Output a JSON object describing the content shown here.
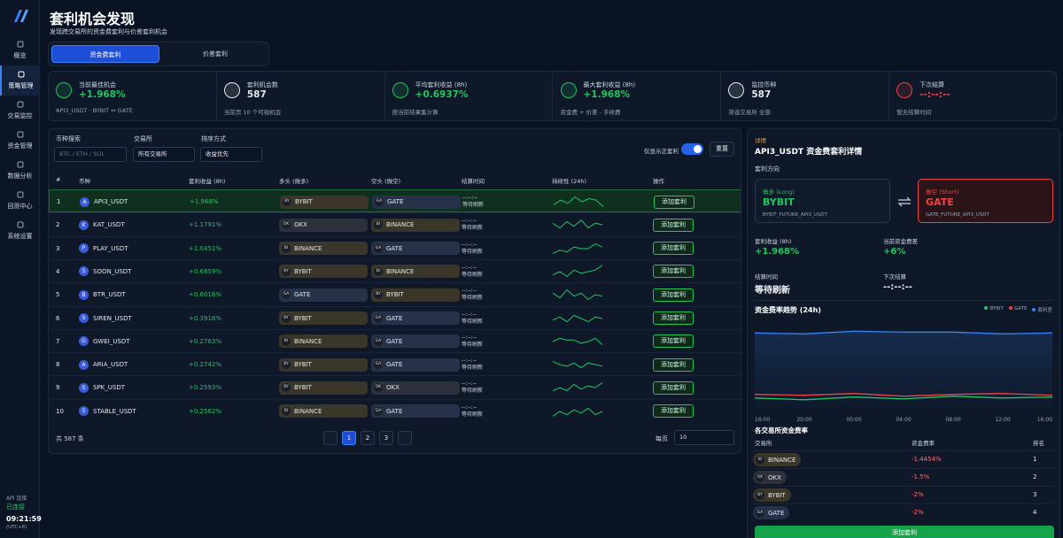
{
  "active_nav": 1,
  "sidebar": {
    "nav": [
      "概览",
      "策略管理",
      "交易监控",
      "资金管理",
      "数据分析",
      "回测中心",
      "系统设置"
    ]
  },
  "status": {
    "label": "API 连接",
    "state": "已连接",
    "time": "09:21:59",
    "tz": "(UTC+8)"
  },
  "header": {
    "title": "套利机会发现",
    "subtitle": "发现跨交易所的资金费套利与价差套利机会"
  },
  "tabs": {
    "items": [
      "资金费套利",
      "价差套利"
    ],
    "active": 0
  },
  "stats": [
    {
      "label": "当前最佳机会",
      "value": "+1.968%",
      "note": "API3_USDT · BYBIT ↔ GATE",
      "color": "#22c55e"
    },
    {
      "label": "套利机会数",
      "value": "587",
      "note": "当前页 10 个可视机会",
      "color": "#e5e7eb"
    },
    {
      "label": "平均套利收益 (8h)",
      "value": "+0.6937%",
      "note": "按当前结果集计算",
      "color": "#22c55e"
    },
    {
      "label": "最大套利收益 (8h)",
      "value": "+1.968%",
      "note": "资金费 + 价差 - 手续费",
      "color": "#22c55e"
    },
    {
      "label": "监控币种",
      "value": "587",
      "note": "筛选交易所 全部",
      "color": "#e5e7eb"
    },
    {
      "label": "下次结算",
      "value": "--:--:--",
      "note": "暂无结算时间",
      "color": "#ef4444"
    }
  ],
  "filters": {
    "search_label": "币种搜索",
    "search_placeholder": "BTC / ETH / SOL",
    "exchange_label": "交易所",
    "exchange_value": "所有交易所",
    "sort_label": "排序方式",
    "sort_value": "收益优先",
    "toggle_label": "仅显示正套利",
    "reset": "重置"
  },
  "exchange_styles": {
    "BYBIT": "#3a3629",
    "GATE": "#26324a",
    "OKX": "#2c313c",
    "BINANCE": "#3a3629"
  },
  "table": {
    "columns": [
      "#",
      "币种",
      "套利收益 (8h)",
      "多头 (做多)",
      "空头 (做空)",
      "结算时间",
      "持续性 (24h)",
      "操作"
    ],
    "trend_range": [
      0,
      10
    ],
    "highlight": 0,
    "rows": [
      {
        "rank": 1,
        "icon": "A",
        "symbol": "API3_USDT",
        "profit": "+1.968%",
        "long": {
          "abbr": "BY",
          "name": "BYBIT"
        },
        "short": {
          "abbr": "GA",
          "name": "GATE"
        },
        "settle": "--:--:--",
        "settle_note": "等待刷新",
        "trend": [
          3,
          6,
          4,
          8,
          5,
          7,
          6,
          2
        ],
        "action": "添加套利"
      },
      {
        "rank": 2,
        "icon": "K",
        "symbol": "KAT_USDT",
        "profit": "+1.1791%",
        "long": {
          "abbr": "OK",
          "name": "OKX"
        },
        "short": {
          "abbr": "BI",
          "name": "BINANCE"
        },
        "settle": "--:--:--",
        "settle_note": "等待刷新",
        "trend": [
          6,
          3,
          7,
          4,
          8,
          3,
          6,
          5
        ],
        "action": "添加套利"
      },
      {
        "rank": 3,
        "icon": "P",
        "symbol": "PLAY_USDT",
        "profit": "+1.0451%",
        "long": {
          "abbr": "BI",
          "name": "BINANCE"
        },
        "short": {
          "abbr": "GA",
          "name": "GATE"
        },
        "settle": "--:--:--",
        "settle_note": "等待刷新",
        "trend": [
          2,
          4,
          3,
          6,
          5,
          5,
          8,
          6
        ],
        "action": "添加套利"
      },
      {
        "rank": 4,
        "icon": "S",
        "symbol": "SOON_USDT",
        "profit": "+0.6859%",
        "long": {
          "abbr": "BY",
          "name": "BYBIT"
        },
        "short": {
          "abbr": "BI",
          "name": "BINANCE"
        },
        "settle": "--:--:--",
        "settle_note": "等待刷新",
        "trend": [
          3,
          5,
          2,
          6,
          4,
          5,
          6,
          9
        ],
        "action": "添加套利"
      },
      {
        "rank": 5,
        "icon": "B",
        "symbol": "BTR_USDT",
        "profit": "+0.6016%",
        "long": {
          "abbr": "GA",
          "name": "GATE"
        },
        "short": {
          "abbr": "BY",
          "name": "BYBIT"
        },
        "settle": "--:--:--",
        "settle_note": "等待刷新",
        "trend": [
          6,
          3,
          8,
          4,
          6,
          2,
          5,
          4
        ],
        "action": "添加套利"
      },
      {
        "rank": 6,
        "icon": "S",
        "symbol": "SIREN_USDT",
        "profit": "+0.3916%",
        "long": {
          "abbr": "BY",
          "name": "BYBIT"
        },
        "short": {
          "abbr": "GA",
          "name": "GATE"
        },
        "settle": "--:--:--",
        "settle_note": "等待刷新",
        "trend": [
          4,
          6,
          3,
          7,
          5,
          3,
          6,
          5
        ],
        "action": "添加套利"
      },
      {
        "rank": 7,
        "icon": "G",
        "symbol": "GWEI_USDT",
        "profit": "+0.2763%",
        "long": {
          "abbr": "BI",
          "name": "BINANCE"
        },
        "short": {
          "abbr": "GA",
          "name": "GATE"
        },
        "settle": "--:--:--",
        "settle_note": "等待刷新",
        "trend": [
          5,
          7,
          6,
          6,
          4,
          5,
          7,
          3
        ],
        "action": "添加套利"
      },
      {
        "rank": 8,
        "icon": "A",
        "symbol": "ARIA_USDT",
        "profit": "+0.2742%",
        "long": {
          "abbr": "BY",
          "name": "BYBIT"
        },
        "short": {
          "abbr": "GA",
          "name": "GATE"
        },
        "settle": "--:--:--",
        "settle_note": "等待刷新",
        "trend": [
          7,
          5,
          4,
          6,
          3,
          6,
          5,
          4
        ],
        "action": "添加套利"
      },
      {
        "rank": 9,
        "icon": "S",
        "symbol": "SPK_USDT",
        "profit": "+0.2593%",
        "long": {
          "abbr": "BY",
          "name": "BYBIT"
        },
        "short": {
          "abbr": "OK",
          "name": "OKX"
        },
        "settle": "--:--:--",
        "settle_note": "等待刷新",
        "trend": [
          3,
          5,
          3,
          7,
          4,
          6,
          5,
          8
        ],
        "action": "添加套利"
      },
      {
        "rank": 10,
        "icon": "S",
        "symbol": "STABLE_USDT",
        "profit": "+0.2562%",
        "long": {
          "abbr": "BI",
          "name": "BINANCE"
        },
        "short": {
          "abbr": "GA",
          "name": "GATE"
        },
        "settle": "--:--:--",
        "settle_note": "等待刷新",
        "trend": [
          2,
          5,
          3,
          6,
          4,
          7,
          3,
          5
        ],
        "action": "添加套利"
      }
    ]
  },
  "footer": {
    "total": "共 587 条",
    "pages": [
      1,
      2,
      3
    ],
    "active_page": 0,
    "per_page_label": "每页",
    "per_page": 10
  },
  "detail": {
    "tag": "详情",
    "title": "API3_USDT 资金费套利详情",
    "direction_label": "套利方向",
    "long": {
      "label": "做多 (Long)",
      "exchange": "BYBIT",
      "contract": "BYBIT_FUTURE_API3_USDT",
      "color": "#22c55e"
    },
    "short": {
      "label": "做空 (Short)",
      "exchange": "GATE",
      "contract": "GATE_FUTURE_API3_USDT",
      "color": "#ef4444"
    },
    "metrics": [
      {
        "label": "套利收益 (8h)",
        "value": "+1.968%",
        "color": "#22c55e"
      },
      {
        "label": "当前资金费差",
        "value": "+6%",
        "color": "#22c55e"
      },
      {
        "label": "结算时间",
        "value": "等待刷新",
        "color": "#f3f4f6"
      },
      {
        "label": "下次结算",
        "value": "--:--:--",
        "color": "#f3f4f6"
      }
    ],
    "chart": {
      "type": "line",
      "title": "资金费率趋势 (24h)",
      "categories": [
        "16:00",
        "20:00",
        "00:00",
        "04:00",
        "08:00",
        "12:00",
        "16:00"
      ],
      "ylim": [
        0,
        10
      ],
      "series": [
        {
          "name": "BYBIT",
          "color": "#22c55e",
          "values": [
            1.2,
            1.0,
            1.3,
            1.1,
            1.4,
            1.2,
            1.3
          ]
        },
        {
          "name": "GATE",
          "color": "#ef4444",
          "values": [
            1.6,
            1.5,
            1.7,
            1.4,
            1.6,
            1.7,
            1.5
          ]
        },
        {
          "name": "套利差",
          "color": "#3b82f6",
          "values": [
            8.4,
            8.3,
            8.6,
            8.5,
            8.5,
            8.3,
            8.4
          ]
        }
      ]
    },
    "rates": {
      "title": "各交易所资金费率",
      "columns": [
        "交易所",
        "资金费率",
        "排名"
      ],
      "rows": [
        {
          "abbr": "BI",
          "name": "BINANCE",
          "rate": "-1.4454%",
          "rank": 1
        },
        {
          "abbr": "OK",
          "name": "OKX",
          "rate": "-1.5%",
          "rank": 2
        },
        {
          "abbr": "BY",
          "name": "BYBIT",
          "rate": "-2%",
          "rank": 3
        },
        {
          "abbr": "GA",
          "name": "GATE",
          "rate": "-2%",
          "rank": 4
        }
      ]
    },
    "action": "添加套利"
  }
}
